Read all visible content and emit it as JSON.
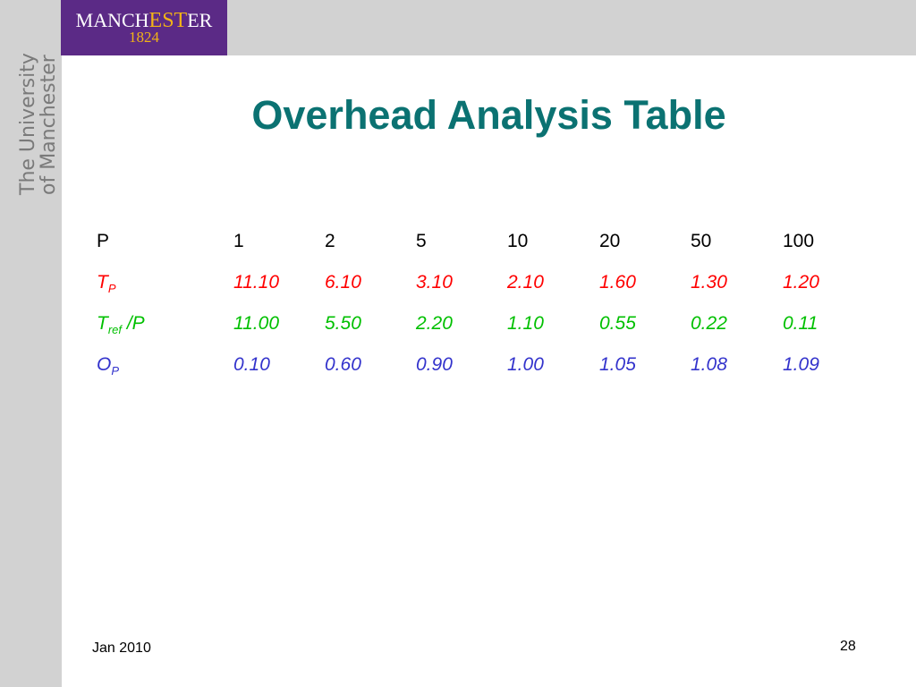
{
  "logo": {
    "word_start": "MANCH",
    "word_mid": "EST",
    "word_end": "ER",
    "year": "1824"
  },
  "university": {
    "line1": "The University",
    "line2": "of Manchester"
  },
  "title": "Overhead Analysis Table",
  "table": {
    "rows": [
      {
        "label": {
          "main": "P",
          "sub": "",
          "suffix": ""
        },
        "values": [
          "1",
          "2",
          "5",
          "10",
          "20",
          "50",
          "100"
        ]
      },
      {
        "label": {
          "main": "T",
          "sub": "P",
          "suffix": ""
        },
        "values": [
          "11.10",
          "6.10",
          "3.10",
          "2.10",
          "1.60",
          "1.30",
          "1.20"
        ]
      },
      {
        "label": {
          "main": "T",
          "sub": "ref",
          "suffix": " /P"
        },
        "values": [
          "11.00",
          "5.50",
          "2.20",
          "1.10",
          "0.55",
          "0.22",
          "0.11"
        ]
      },
      {
        "label": {
          "main": "O",
          "sub": "P",
          "suffix": ""
        },
        "values": [
          "0.10",
          "0.60",
          "0.90",
          "1.00",
          "1.05",
          "1.08",
          "1.09"
        ]
      }
    ]
  },
  "colors": {
    "title": "#0b7272",
    "row_p": "#000000",
    "row_tp": "#ff0000",
    "row_tref": "#00c000",
    "row_op": "#3333cc",
    "logo_bg": "#5b2a86",
    "logo_accent": "#f2b316"
  },
  "footer": {
    "date": "Jan 2010",
    "page": "28"
  }
}
